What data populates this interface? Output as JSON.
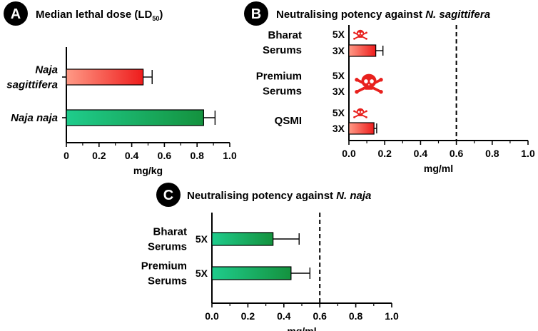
{
  "chart_data": [
    {
      "panel": "A",
      "type": "bar",
      "orientation": "horizontal",
      "title": "Median lethal dose (LD",
      "title_subscript": "50",
      "title_suffix": ")",
      "categories": [
        {
          "lines": [
            "Naja",
            "sagittifera"
          ],
          "italic": true
        },
        {
          "lines": [
            "Naja naja"
          ],
          "italic": true
        }
      ],
      "values": [
        0.47,
        0.84
      ],
      "errors": [
        0.055,
        0.07
      ],
      "gradients": [
        "red",
        "green"
      ],
      "xlabel": "mg/kg",
      "xlim": [
        0,
        1.0
      ],
      "ticks": [
        "0",
        "0.2",
        "0.4",
        "0.6",
        "0.8",
        "1.0"
      ],
      "tick_values": [
        0,
        0.2,
        0.4,
        0.6,
        0.8,
        1.0
      ]
    },
    {
      "panel": "B",
      "type": "bar",
      "orientation": "horizontal",
      "title": "Neutralising potency against ",
      "title_italic": "N. sagittifera",
      "groups": [
        {
          "lines": [
            "Bharat",
            "Serums"
          ],
          "rows": [
            {
              "label": "5X",
              "value": null,
              "skull": true,
              "skull_size": "small"
            },
            {
              "label": "3X",
              "value": 0.15,
              "error": 0.04
            }
          ]
        },
        {
          "lines": [
            "Premium",
            "Serums"
          ],
          "rows": [
            {
              "label": "5X",
              "value": null,
              "skull": true,
              "skull_size": "large"
            },
            {
              "label": "3X",
              "value": null
            }
          ]
        },
        {
          "lines": [
            "QSMI"
          ],
          "rows": [
            {
              "label": "5X",
              "value": null,
              "skull": true,
              "skull_size": "small"
            },
            {
              "label": "3X",
              "value": 0.14,
              "error": 0.015
            }
          ]
        }
      ],
      "threshold": 0.6,
      "xlabel": "mg/ml",
      "xlim": [
        0,
        1.0
      ],
      "ticks": [
        "0.0",
        "0.2",
        "0.4",
        "0.6",
        "0.8",
        "1.0"
      ],
      "tick_values": [
        0,
        0.2,
        0.4,
        0.6,
        0.8,
        1.0
      ]
    },
    {
      "panel": "C",
      "type": "bar",
      "orientation": "horizontal",
      "title": "Neutralising potency against ",
      "title_italic": "N. naja",
      "groups": [
        {
          "lines": [
            "Bharat",
            "Serums"
          ],
          "rows": [
            {
              "label": "5X",
              "value": 0.34,
              "error": 0.145
            }
          ]
        },
        {
          "lines": [
            "Premium",
            "Serums"
          ],
          "rows": [
            {
              "label": "5X",
              "value": 0.44,
              "error": 0.105
            }
          ]
        }
      ],
      "threshold": 0.6,
      "xlabel": "mg/ml",
      "xlim": [
        0,
        1.0
      ],
      "ticks": [
        "0.0",
        "0.2",
        "0.4",
        "0.6",
        "0.8",
        "1.0"
      ],
      "tick_values": [
        0,
        0.2,
        0.4,
        0.6,
        0.8,
        1.0
      ]
    }
  ],
  "colors": {
    "red_light": "#ff9a86",
    "red_dark": "#ee1c1c",
    "green_light": "#1fcc8c",
    "green_dark": "#14923e",
    "skull": "#e8201d",
    "axis": "#000000"
  }
}
